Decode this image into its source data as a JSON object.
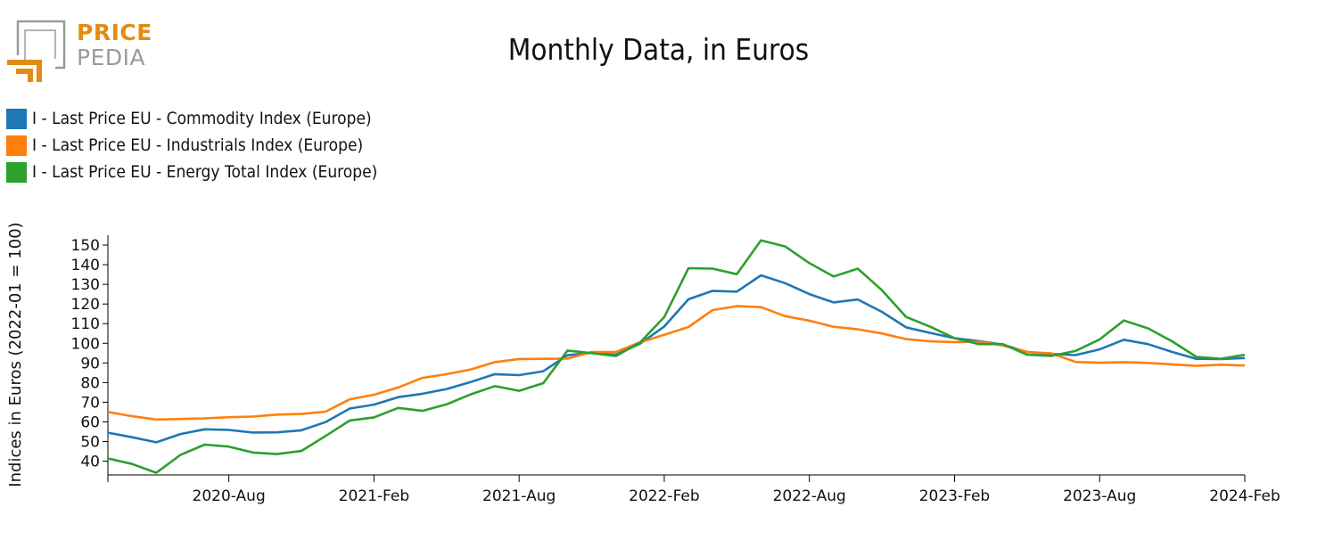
{
  "logo": {
    "line1": "PRICE",
    "line2": "PEDIA"
  },
  "chart_data": {
    "type": "line",
    "title": "Monthly Data, in Euros",
    "ylabel": "Indices in Euros (2022-01 = 100)",
    "xlabel": "",
    "ylim": [
      33,
      155
    ],
    "yticks": [
      40,
      50,
      60,
      70,
      80,
      90,
      100,
      110,
      120,
      130,
      140,
      150
    ],
    "x_start": "2020-03",
    "x_end": "2024-02",
    "x_ticks": [
      {
        "label": "2020-Aug",
        "index": 5
      },
      {
        "label": "2021-Feb",
        "index": 11
      },
      {
        "label": "2021-Aug",
        "index": 17
      },
      {
        "label": "2022-Feb",
        "index": 23
      },
      {
        "label": "2022-Aug",
        "index": 29
      },
      {
        "label": "2023-Feb",
        "index": 35
      },
      {
        "label": "2023-Aug",
        "index": 41
      },
      {
        "label": "2024-Feb",
        "index": 47
      }
    ],
    "legend_position": "top-left",
    "series": [
      {
        "name": "I - Last Price EU - Commodity Index (Europe)",
        "color": "#1f77b4",
        "values": [
          54.5,
          52.2,
          49.6,
          53.8,
          56.2,
          55.9,
          54.6,
          54.7,
          55.7,
          59.9,
          66.8,
          68.8,
          72.6,
          74.3,
          76.7,
          80.3,
          84.3,
          83.8,
          85.8,
          93.9,
          95.2,
          94.2,
          99.8,
          108.5,
          122.4,
          126.7,
          126.3,
          134.6,
          130.6,
          125.0,
          120.8,
          122.3,
          116.0,
          108.1,
          105.3,
          102.6,
          101.1,
          99.3,
          95.6,
          94.6,
          94.0,
          96.9,
          101.8,
          99.6,
          95.6,
          92.1,
          92.0,
          92.5
        ]
      },
      {
        "name": "I - Last Price EU - Industrials Index (Europe)",
        "color": "#ff7f0e",
        "values": [
          65.0,
          62.9,
          61.2,
          61.5,
          61.8,
          62.4,
          62.7,
          63.7,
          64.0,
          65.2,
          71.5,
          73.8,
          77.5,
          82.4,
          84.3,
          86.7,
          90.4,
          92.0,
          92.1,
          92.2,
          95.6,
          95.6,
          100.5,
          104.3,
          108.3,
          116.9,
          118.9,
          118.4,
          113.8,
          111.5,
          108.4,
          107.1,
          105.0,
          102.1,
          101.0,
          100.6,
          100.8,
          98.9,
          95.6,
          94.9,
          90.5,
          90.1,
          90.4,
          90.0,
          89.3,
          88.5,
          89.1,
          88.7
        ]
      },
      {
        "name": "I - Last Price EU - Energy Total Index (Europe)",
        "color": "#2ca02c",
        "values": [
          41.4,
          38.6,
          34.1,
          43.2,
          48.4,
          47.4,
          44.4,
          43.6,
          45.2,
          52.8,
          60.7,
          62.3,
          67.1,
          65.6,
          68.9,
          74.0,
          78.2,
          75.8,
          79.7,
          96.3,
          95.0,
          93.5,
          100.4,
          113.3,
          138.2,
          138.0,
          135.2,
          152.4,
          149.3,
          140.8,
          134.0,
          138.0,
          127.0,
          113.4,
          108.4,
          102.6,
          99.6,
          99.6,
          94.2,
          93.6,
          96.1,
          102.0,
          111.6,
          107.6,
          101.0,
          93.1,
          92.1,
          94.2
        ]
      }
    ]
  }
}
